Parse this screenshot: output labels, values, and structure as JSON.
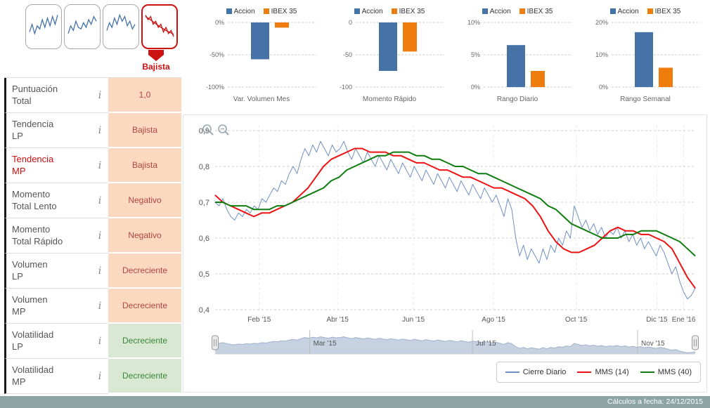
{
  "footer": {
    "text": "Cálculos a fecha: 24/12/2015"
  },
  "colors": {
    "accion_blue": "#4572a7",
    "ibex_orange": "#ee7d0e",
    "close_blue": "#6f8fc4",
    "mms14_red": "#ee1111",
    "mms40_green": "#0e7d0e",
    "alert_red": "#cc1111"
  },
  "sidebar": {
    "signal": {
      "label": "Bajista"
    },
    "info_icon": "i",
    "thumbnails": [
      {
        "series": [
          {
            "color": "#4572a7",
            "values": [
              0.35,
              0.6,
              0.3,
              0.55,
              0.45,
              0.75,
              0.5,
              0.8,
              0.55,
              0.85,
              0.6,
              0.9
            ]
          }
        ]
      },
      {
        "series": [
          {
            "color": "#4572a7",
            "values": [
              0.3,
              0.55,
              0.4,
              0.7,
              0.5,
              0.45,
              0.65,
              0.5,
              0.75,
              0.6,
              0.85,
              0.7
            ]
          }
        ]
      },
      {
        "series": [
          {
            "color": "#4572a7",
            "values": [
              0.4,
              0.65,
              0.5,
              0.8,
              0.6,
              0.9,
              0.7,
              0.85,
              0.55,
              0.7,
              0.45,
              0.6
            ]
          }
        ]
      },
      {
        "series": [
          {
            "color": "#cc1111",
            "values": [
              0.9,
              0.75,
              0.85,
              0.6,
              0.7,
              0.5,
              0.6,
              0.35,
              0.5,
              0.3,
              0.4,
              0.2
            ]
          },
          {
            "color": "#cc1111",
            "values": [
              0.85,
              0.8,
              0.74,
              0.68,
              0.62,
              0.56,
              0.5,
              0.45,
              0.4,
              0.36,
              0.32,
              0.27
            ]
          }
        ]
      }
    ],
    "rows": [
      {
        "label": "Puntuación Total",
        "value": "1,0",
        "state": "negative"
      },
      {
        "label": "Tendencia LP",
        "value": "Bajista",
        "state": "negative"
      },
      {
        "label": "Tendencia MP",
        "value": "Bajista",
        "state": "negative",
        "label_highlight": true
      },
      {
        "label": "Momento Total Lento",
        "value": "Negativo",
        "state": "negative"
      },
      {
        "label": "Momento Total Rápido",
        "value": "Negativo",
        "state": "negative"
      },
      {
        "label": "Volumen LP",
        "value": "Decreciente",
        "state": "negative"
      },
      {
        "label": "Volumen MP",
        "value": "Decreciente",
        "state": "negative"
      },
      {
        "label": "Volatilidad LP",
        "value": "Decreciente",
        "state": "positive"
      },
      {
        "label": "Volatilidad MP",
        "value": "Decreciente",
        "state": "positive"
      }
    ]
  },
  "chart_data": [
    {
      "name": "var_volumen_mes",
      "type": "bar",
      "title": "Var. Volumen Mes",
      "legend": [
        "Accion",
        "IBEX 35"
      ],
      "categories": [
        "Accion",
        "IBEX 35"
      ],
      "values": [
        -57,
        -8
      ],
      "colors": [
        "#4572a7",
        "#ee7d0e"
      ],
      "ylim": [
        -100,
        0
      ],
      "yticks": [
        {
          "v": 0,
          "label": "0%"
        },
        {
          "v": -50,
          "label": "-50%"
        },
        {
          "v": -100,
          "label": "-100%"
        }
      ]
    },
    {
      "name": "momento_rapido",
      "type": "bar",
      "title": "Momento Rápido",
      "legend": [
        "Accion",
        "IBEX 35"
      ],
      "categories": [
        "Accion",
        "IBEX 35"
      ],
      "values": [
        -75,
        -45
      ],
      "colors": [
        "#4572a7",
        "#ee7d0e"
      ],
      "ylim": [
        -100,
        0
      ],
      "yticks": [
        {
          "v": 0,
          "label": "0"
        },
        {
          "v": -50,
          "label": "-50"
        },
        {
          "v": -100,
          "label": "-100"
        }
      ]
    },
    {
      "name": "rango_diario",
      "type": "bar",
      "title": "Rango Diario",
      "legend": [
        "Accion",
        "IBEX 35"
      ],
      "categories": [
        "Accion",
        "IBEX 35"
      ],
      "values": [
        6.5,
        2.5
      ],
      "colors": [
        "#4572a7",
        "#ee7d0e"
      ],
      "ylim": [
        0,
        10
      ],
      "yticks": [
        {
          "v": 10,
          "label": "10%"
        },
        {
          "v": 5,
          "label": "5%"
        },
        {
          "v": 0,
          "label": "0%"
        }
      ]
    },
    {
      "name": "rango_semanal",
      "type": "bar",
      "title": "Rango Semanal",
      "legend": [
        "Accion",
        "IBEX 35"
      ],
      "categories": [
        "Accion",
        "IBEX 35"
      ],
      "values": [
        17,
        6
      ],
      "colors": [
        "#4572a7",
        "#ee7d0e"
      ],
      "ylim": [
        0,
        20
      ],
      "yticks": [
        {
          "v": 20,
          "label": "20%"
        },
        {
          "v": 10,
          "label": "10%"
        },
        {
          "v": 0,
          "label": "0%"
        }
      ]
    },
    {
      "name": "price_history",
      "type": "line",
      "ylim": [
        0.4,
        0.9
      ],
      "yticks": [
        {
          "v": 0.9,
          "label": "0,9"
        },
        {
          "v": 0.8,
          "label": "0,8"
        },
        {
          "v": 0.7,
          "label": "0,7"
        },
        {
          "v": 0.6,
          "label": "0,6"
        },
        {
          "v": 0.5,
          "label": "0,5"
        },
        {
          "v": 0.4,
          "label": "0,4"
        }
      ],
      "xticks": [
        {
          "f": 0.092,
          "label": "Feb '15"
        },
        {
          "f": 0.255,
          "label": "Abr '15"
        },
        {
          "f": 0.413,
          "label": "Jun '15"
        },
        {
          "f": 0.58,
          "label": "Ago '15"
        },
        {
          "f": 0.752,
          "label": "Oct '15"
        },
        {
          "f": 0.92,
          "label": "Dic '15"
        },
        {
          "f": 0.976,
          "label": "Ene '16"
        }
      ],
      "series": [
        {
          "name": "Cierre Diario",
          "color": "#6f8fc4",
          "width": 1,
          "values": [
            0.7,
            0.69,
            0.71,
            0.68,
            0.66,
            0.65,
            0.67,
            0.66,
            0.68,
            0.67,
            0.69,
            0.68,
            0.71,
            0.7,
            0.72,
            0.74,
            0.73,
            0.76,
            0.75,
            0.78,
            0.8,
            0.78,
            0.82,
            0.85,
            0.83,
            0.86,
            0.84,
            0.87,
            0.85,
            0.83,
            0.86,
            0.84,
            0.85,
            0.87,
            0.84,
            0.82,
            0.85,
            0.83,
            0.81,
            0.84,
            0.82,
            0.8,
            0.83,
            0.81,
            0.79,
            0.82,
            0.8,
            0.78,
            0.81,
            0.79,
            0.77,
            0.8,
            0.78,
            0.76,
            0.79,
            0.77,
            0.75,
            0.78,
            0.76,
            0.74,
            0.77,
            0.75,
            0.73,
            0.76,
            0.74,
            0.72,
            0.75,
            0.73,
            0.71,
            0.74,
            0.72,
            0.7,
            0.72,
            0.69,
            0.66,
            0.71,
            0.68,
            0.6,
            0.55,
            0.58,
            0.54,
            0.57,
            0.55,
            0.53,
            0.57,
            0.54,
            0.58,
            0.56,
            0.6,
            0.58,
            0.62,
            0.6,
            0.69,
            0.66,
            0.63,
            0.65,
            0.62,
            0.64,
            0.61,
            0.63,
            0.6,
            0.62,
            0.61,
            0.63,
            0.6,
            0.62,
            0.59,
            0.61,
            0.58,
            0.6,
            0.57,
            0.59,
            0.57,
            0.55,
            0.58,
            0.56,
            0.53,
            0.5,
            0.52,
            0.48,
            0.45,
            0.43,
            0.44,
            0.46
          ]
        },
        {
          "name": "MMS (14)",
          "color": "#ee1111",
          "width": 2,
          "values": [
            0.72,
            0.7,
            0.69,
            0.68,
            0.67,
            0.66,
            0.67,
            0.67,
            0.68,
            0.69,
            0.7,
            0.72,
            0.74,
            0.77,
            0.8,
            0.82,
            0.83,
            0.84,
            0.85,
            0.85,
            0.84,
            0.84,
            0.84,
            0.83,
            0.83,
            0.82,
            0.81,
            0.81,
            0.8,
            0.79,
            0.79,
            0.78,
            0.77,
            0.77,
            0.76,
            0.75,
            0.74,
            0.74,
            0.73,
            0.72,
            0.71,
            0.69,
            0.66,
            0.62,
            0.59,
            0.57,
            0.56,
            0.56,
            0.57,
            0.58,
            0.6,
            0.62,
            0.63,
            0.62,
            0.62,
            0.61,
            0.61,
            0.6,
            0.59,
            0.57,
            0.53,
            0.49,
            0.46
          ]
        },
        {
          "name": "MMS (40)",
          "color": "#0e7d0e",
          "width": 2,
          "values": [
            0.7,
            0.7,
            0.69,
            0.69,
            0.69,
            0.68,
            0.68,
            0.68,
            0.69,
            0.69,
            0.7,
            0.71,
            0.72,
            0.73,
            0.74,
            0.76,
            0.77,
            0.79,
            0.8,
            0.81,
            0.82,
            0.83,
            0.83,
            0.84,
            0.84,
            0.84,
            0.83,
            0.83,
            0.82,
            0.82,
            0.81,
            0.8,
            0.8,
            0.79,
            0.78,
            0.78,
            0.77,
            0.76,
            0.75,
            0.74,
            0.73,
            0.72,
            0.71,
            0.69,
            0.68,
            0.66,
            0.64,
            0.63,
            0.62,
            0.61,
            0.6,
            0.6,
            0.6,
            0.61,
            0.61,
            0.62,
            0.62,
            0.62,
            0.61,
            0.6,
            0.59,
            0.57,
            0.55
          ]
        }
      ]
    },
    {
      "name": "navigator",
      "type": "area",
      "source": "price_history",
      "fill": "#c6d2e2",
      "line": "#9fb1cc",
      "xticks": [
        {
          "f": 0.197,
          "label": "Mar '15"
        },
        {
          "f": 0.536,
          "label": "Jul '15"
        },
        {
          "f": 0.88,
          "label": "Nov '15"
        }
      ]
    }
  ],
  "main_legend": {
    "items": [
      {
        "label": "Cierre Diario",
        "color": "#6f8fc4"
      },
      {
        "label": "MMS (14)",
        "color": "#ee1111"
      },
      {
        "label": "MMS (40)",
        "color": "#0e7d0e"
      }
    ]
  }
}
